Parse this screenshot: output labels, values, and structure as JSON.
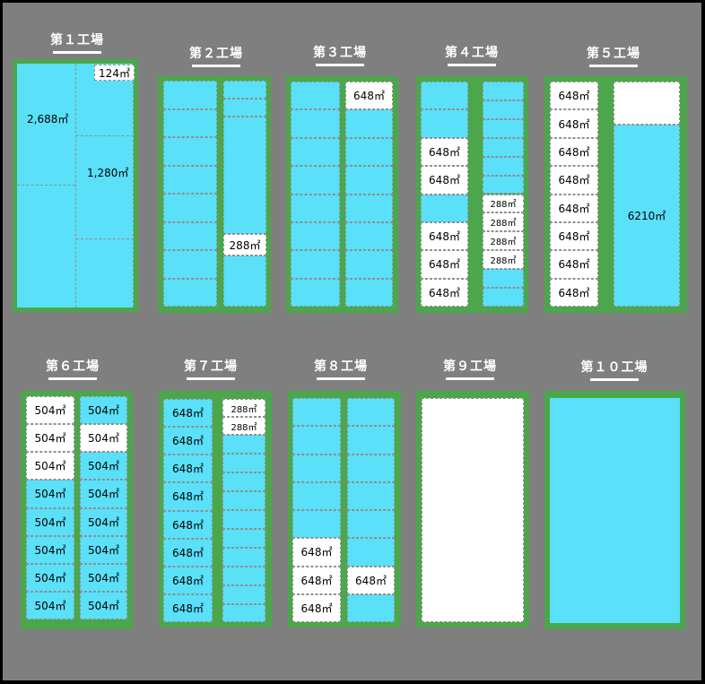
{
  "factories": [
    {
      "id": "f1",
      "title": "第１工場",
      "labels": [
        "2,688㎡",
        "1,280㎡",
        "124㎡"
      ]
    },
    {
      "id": "f2",
      "title": "第２工場",
      "cols": [
        {
          "cells": [
            {
              "t": "",
              "c": "b"
            },
            {
              "t": "",
              "c": "b"
            },
            {
              "t": "",
              "c": "b"
            },
            {
              "t": "",
              "c": "b"
            },
            {
              "t": "",
              "c": "b"
            },
            {
              "t": "",
              "c": "b"
            },
            {
              "t": "",
              "c": "b"
            },
            {
              "t": "",
              "c": "b"
            }
          ]
        },
        {
          "cells": [
            {
              "t": "",
              "c": "b"
            },
            {
              "t": "",
              "c": "b"
            },
            {
              "t": "",
              "c": "b"
            },
            {
              "t": "288㎡",
              "c": "w"
            },
            {
              "t": "",
              "c": "b"
            }
          ]
        }
      ]
    },
    {
      "id": "f3",
      "title": "第３工場",
      "cols": [
        {
          "cells": [
            {
              "t": "",
              "c": "b"
            },
            {
              "t": "",
              "c": "b"
            },
            {
              "t": "",
              "c": "b"
            },
            {
              "t": "",
              "c": "b"
            },
            {
              "t": "",
              "c": "b"
            },
            {
              "t": "",
              "c": "b"
            },
            {
              "t": "",
              "c": "b"
            },
            {
              "t": "",
              "c": "b"
            }
          ]
        },
        {
          "cells": [
            {
              "t": "648㎡",
              "c": "w"
            },
            {
              "t": "",
              "c": "b"
            },
            {
              "t": "",
              "c": "b"
            },
            {
              "t": "",
              "c": "b"
            },
            {
              "t": "",
              "c": "b"
            },
            {
              "t": "",
              "c": "b"
            },
            {
              "t": "",
              "c": "b"
            },
            {
              "t": "",
              "c": "b"
            }
          ]
        }
      ]
    },
    {
      "id": "f4",
      "title": "第４工場",
      "cols": [
        {
          "cells": [
            {
              "t": "",
              "c": "b"
            },
            {
              "t": "",
              "c": "b"
            },
            {
              "t": "648㎡",
              "c": "w"
            },
            {
              "t": "648㎡",
              "c": "w"
            },
            {
              "t": "",
              "c": "b"
            },
            {
              "t": "648㎡",
              "c": "w"
            },
            {
              "t": "648㎡",
              "c": "w"
            },
            {
              "t": "648㎡",
              "c": "w"
            }
          ]
        },
        {
          "cells": [
            {
              "t": "",
              "c": "b"
            },
            {
              "t": "",
              "c": "b"
            },
            {
              "t": "",
              "c": "b"
            },
            {
              "t": "",
              "c": "b"
            },
            {
              "t": "",
              "c": "b"
            },
            {
              "t": "",
              "c": "b"
            },
            {
              "t": "288㎡",
              "c": "w"
            },
            {
              "t": "288㎡",
              "c": "w"
            },
            {
              "t": "288㎡",
              "c": "w"
            },
            {
              "t": "288㎡",
              "c": "w"
            },
            {
              "t": "",
              "c": "b"
            },
            {
              "t": "",
              "c": "b"
            }
          ]
        }
      ]
    },
    {
      "id": "f5",
      "title": "第５工場",
      "cols": [
        {
          "cells": [
            {
              "t": "648㎡",
              "c": "w"
            },
            {
              "t": "648㎡",
              "c": "w"
            },
            {
              "t": "648㎡",
              "c": "w"
            },
            {
              "t": "648㎡",
              "c": "w"
            },
            {
              "t": "648㎡",
              "c": "w"
            },
            {
              "t": "648㎡",
              "c": "w"
            },
            {
              "t": "648㎡",
              "c": "w"
            },
            {
              "t": "648㎡",
              "c": "w"
            }
          ]
        }
      ],
      "big_label": "6210㎡"
    },
    {
      "id": "f6",
      "title": "第６工場",
      "cols": [
        {
          "cells": [
            {
              "t": "504㎡",
              "c": "w"
            },
            {
              "t": "504㎡",
              "c": "w"
            },
            {
              "t": "504㎡",
              "c": "w"
            },
            {
              "t": "504㎡",
              "c": "b"
            },
            {
              "t": "504㎡",
              "c": "b"
            },
            {
              "t": "504㎡",
              "c": "b"
            },
            {
              "t": "504㎡",
              "c": "b"
            },
            {
              "t": "504㎡",
              "c": "b"
            }
          ]
        },
        {
          "cells": [
            {
              "t": "504㎡",
              "c": "b"
            },
            {
              "t": "504㎡",
              "c": "w"
            },
            {
              "t": "504㎡",
              "c": "b"
            },
            {
              "t": "504㎡",
              "c": "b"
            },
            {
              "t": "504㎡",
              "c": "b"
            },
            {
              "t": "504㎡",
              "c": "b"
            },
            {
              "t": "504㎡",
              "c": "b"
            },
            {
              "t": "504㎡",
              "c": "b"
            }
          ]
        }
      ]
    },
    {
      "id": "f7",
      "title": "第７工場",
      "cols": [
        {
          "cells": [
            {
              "t": "648㎡",
              "c": "b"
            },
            {
              "t": "648㎡",
              "c": "b"
            },
            {
              "t": "648㎡",
              "c": "b"
            },
            {
              "t": "648㎡",
              "c": "b"
            },
            {
              "t": "648㎡",
              "c": "b"
            },
            {
              "t": "648㎡",
              "c": "b"
            },
            {
              "t": "648㎡",
              "c": "b"
            },
            {
              "t": "648㎡",
              "c": "b"
            }
          ]
        },
        {
          "cells": [
            {
              "t": "288㎡",
              "c": "w"
            },
            {
              "t": "288㎡",
              "c": "w"
            },
            {
              "t": "",
              "c": "b"
            },
            {
              "t": "",
              "c": "b"
            },
            {
              "t": "",
              "c": "b"
            },
            {
              "t": "",
              "c": "b"
            },
            {
              "t": "",
              "c": "b"
            },
            {
              "t": "",
              "c": "b"
            },
            {
              "t": "",
              "c": "b"
            },
            {
              "t": "",
              "c": "b"
            },
            {
              "t": "",
              "c": "b"
            },
            {
              "t": "",
              "c": "b"
            }
          ]
        }
      ]
    },
    {
      "id": "f8",
      "title": "第８工場",
      "cols": [
        {
          "cells": [
            {
              "t": "",
              "c": "b"
            },
            {
              "t": "",
              "c": "b"
            },
            {
              "t": "",
              "c": "b"
            },
            {
              "t": "",
              "c": "b"
            },
            {
              "t": "",
              "c": "b"
            },
            {
              "t": "648㎡",
              "c": "w"
            },
            {
              "t": "648㎡",
              "c": "w"
            },
            {
              "t": "648㎡",
              "c": "w"
            }
          ]
        },
        {
          "cells": [
            {
              "t": "",
              "c": "b"
            },
            {
              "t": "",
              "c": "b"
            },
            {
              "t": "",
              "c": "b"
            },
            {
              "t": "",
              "c": "b"
            },
            {
              "t": "",
              "c": "b"
            },
            {
              "t": "",
              "c": "b"
            },
            {
              "t": "648㎡",
              "c": "w"
            },
            {
              "t": "",
              "c": "b"
            }
          ]
        }
      ]
    },
    {
      "id": "f9",
      "title": "第９工場"
    },
    {
      "id": "f10",
      "title": "第１０工場"
    }
  ],
  "colors": {
    "background": "#7f7f7f",
    "frame": "#4ca64c",
    "available": "#5ae0f8",
    "occupied": "#ffffff"
  }
}
